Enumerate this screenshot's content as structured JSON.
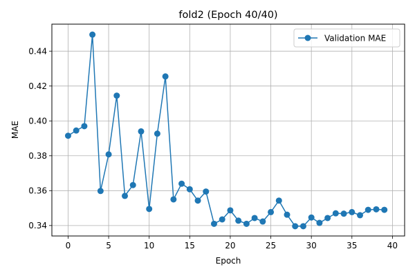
{
  "chart_data": {
    "type": "line",
    "title": "fold2 (Epoch 40/40)",
    "xlabel": "Epoch",
    "ylabel": "MAE",
    "xlim": [
      -2,
      41.5
    ],
    "ylim": [
      0.334,
      0.4555
    ],
    "xticks": [
      0,
      5,
      10,
      15,
      20,
      25,
      30,
      35,
      40
    ],
    "yticks": [
      0.34,
      0.36,
      0.38,
      0.4,
      0.42,
      0.44
    ],
    "grid": true,
    "legend_position": "top-right",
    "colors": {
      "series": "#1f77b4"
    },
    "x": [
      0,
      1,
      2,
      3,
      4,
      5,
      6,
      7,
      8,
      9,
      10,
      11,
      12,
      13,
      14,
      15,
      16,
      17,
      18,
      19,
      20,
      21,
      22,
      23,
      24,
      25,
      26,
      27,
      28,
      29,
      30,
      31,
      32,
      33,
      34,
      35,
      36,
      37,
      38,
      39
    ],
    "series": [
      {
        "name": "Validation MAE",
        "marker": "circle",
        "values": [
          0.3915,
          0.3945,
          0.397,
          0.4495,
          0.3598,
          0.3808,
          0.4145,
          0.357,
          0.3632,
          0.394,
          0.3495,
          0.3927,
          0.4255,
          0.355,
          0.364,
          0.3608,
          0.3543,
          0.3595,
          0.341,
          0.3435,
          0.3487,
          0.3428,
          0.341,
          0.3443,
          0.3423,
          0.3477,
          0.3543,
          0.3462,
          0.3396,
          0.3396,
          0.3446,
          0.3415,
          0.3443,
          0.347,
          0.3468,
          0.3477,
          0.3459,
          0.349,
          0.3493,
          0.349
        ]
      }
    ]
  }
}
